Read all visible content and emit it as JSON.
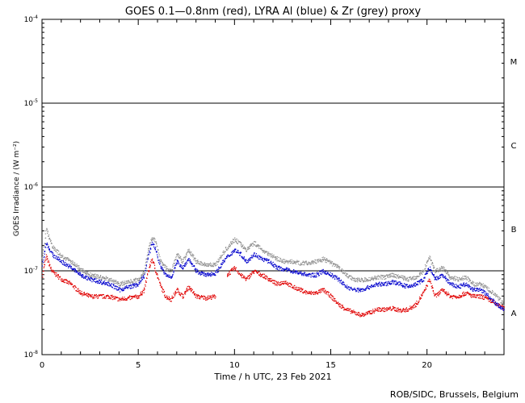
{
  "chart_data": {
    "type": "scatter",
    "title": "GOES 0.1—0.8nm (red), LYRA Al (blue) & Zr (grey) proxy",
    "xlabel": "Time / h UTC, 23 Feb 2021",
    "ylabel": "GOES Irradiance / (W m⁻²)",
    "xlim": [
      0,
      24
    ],
    "ylim": [
      1e-08,
      0.0001
    ],
    "yscale": "log",
    "x_ticks": [
      0,
      5,
      10,
      15,
      20
    ],
    "x_tick_labels": [
      "0",
      "5",
      "10",
      "15",
      "20"
    ],
    "y_ticks": [
      1e-08,
      1e-07,
      1e-06,
      1e-05,
      0.0001
    ],
    "y_tick_labels": [
      {
        "base": "10",
        "exp": "-8"
      },
      {
        "base": "10",
        "exp": "-7"
      },
      {
        "base": "10",
        "exp": "-6"
      },
      {
        "base": "10",
        "exp": "-5"
      },
      {
        "base": "10",
        "exp": "-4"
      }
    ],
    "flare_class_lines": [
      1e-07,
      1e-06,
      1e-05
    ],
    "flare_classes": [
      {
        "label": "M",
        "y": 3.16e-05
      },
      {
        "label": "C",
        "y": 3.16e-06
      },
      {
        "label": "B",
        "y": 3.16e-07
      },
      {
        "label": "A",
        "y": 3.16e-08
      }
    ],
    "colors": {
      "goes": "#e00000",
      "al": "#0000cc",
      "zr": "#909090"
    },
    "series": [
      {
        "color_key": "goes",
        "x": [
          0.0,
          0.2,
          0.5,
          1.0,
          1.5,
          2.0,
          2.5,
          3.0,
          3.5,
          4.0,
          4.5,
          5.0,
          5.3,
          5.5,
          5.7,
          5.9,
          6.1,
          6.4,
          6.7,
          7.0,
          7.3,
          7.6,
          8.0,
          8.5,
          9.0,
          null,
          9.6,
          10.0,
          10.3,
          10.6,
          11.0,
          11.4,
          11.8,
          12.2,
          12.6,
          13.0,
          13.4,
          13.8,
          14.2,
          14.6,
          15.0,
          15.4,
          15.8,
          16.2,
          16.6,
          17.0,
          17.4,
          17.8,
          18.2,
          18.6,
          19.0,
          19.4,
          19.8,
          20.1,
          20.4,
          20.8,
          21.2,
          21.6,
          22.0,
          22.4,
          22.8,
          23.2,
          23.6,
          24.0
        ],
        "y": [
          9e-08,
          1.5e-07,
          1e-07,
          8e-08,
          7e-08,
          5.5e-08,
          5e-08,
          5e-08,
          5e-08,
          4.6e-08,
          4.8e-08,
          5e-08,
          6e-08,
          1e-07,
          1.4e-07,
          1e-07,
          7e-08,
          5e-08,
          4.6e-08,
          6e-08,
          5e-08,
          6.5e-08,
          5e-08,
          4.8e-08,
          5e-08,
          null,
          9e-08,
          1.1e-07,
          9e-08,
          8e-08,
          1e-07,
          9e-08,
          8e-08,
          7e-08,
          7.5e-08,
          6.5e-08,
          6e-08,
          5.5e-08,
          5.5e-08,
          6e-08,
          5e-08,
          4e-08,
          3.5e-08,
          3.2e-08,
          3e-08,
          3.2e-08,
          3.5e-08,
          3.5e-08,
          3.6e-08,
          3.4e-08,
          3.5e-08,
          4e-08,
          5.5e-08,
          8e-08,
          5e-08,
          6e-08,
          5e-08,
          5e-08,
          5.5e-08,
          5e-08,
          5e-08,
          4.6e-08,
          4e-08,
          3.6e-08
        ]
      },
      {
        "color_key": "al",
        "x": [
          0.0,
          0.2,
          0.5,
          1.0,
          1.5,
          2.0,
          2.5,
          3.0,
          3.5,
          4.0,
          4.5,
          5.0,
          5.3,
          5.5,
          5.7,
          5.9,
          6.1,
          6.4,
          6.7,
          7.0,
          7.3,
          7.6,
          8.0,
          8.5,
          9.0,
          9.5,
          10.0,
          10.3,
          10.6,
          11.0,
          11.4,
          11.8,
          12.2,
          12.6,
          13.0,
          13.4,
          13.8,
          14.2,
          14.6,
          15.0,
          15.4,
          15.8,
          16.2,
          16.6,
          17.0,
          17.4,
          17.8,
          18.2,
          18.6,
          19.0,
          19.4,
          19.8,
          20.1,
          20.4,
          20.8,
          21.2,
          21.6,
          22.0,
          22.4,
          22.8,
          23.2,
          23.6,
          24.0
        ],
        "y": [
          1.2e-07,
          2.2e-07,
          1.6e-07,
          1.3e-07,
          1.1e-07,
          9e-08,
          8e-08,
          7.5e-08,
          7e-08,
          6e-08,
          6.5e-08,
          7e-08,
          9e-08,
          1.5e-07,
          2.2e-07,
          1.8e-07,
          1.2e-07,
          9e-08,
          8.5e-08,
          1.3e-07,
          1.1e-07,
          1.4e-07,
          1e-07,
          9e-08,
          9.5e-08,
          1.4e-07,
          1.8e-07,
          1.6e-07,
          1.3e-07,
          1.6e-07,
          1.4e-07,
          1.3e-07,
          1.1e-07,
          1.05e-07,
          1e-07,
          9.5e-08,
          9e-08,
          9e-08,
          1e-07,
          9e-08,
          8e-08,
          6.5e-08,
          6e-08,
          6e-08,
          6.5e-08,
          7e-08,
          7e-08,
          7.5e-08,
          7e-08,
          6.5e-08,
          7e-08,
          8e-08,
          1.1e-07,
          8e-08,
          9e-08,
          7e-08,
          6.5e-08,
          7e-08,
          6e-08,
          6e-08,
          5e-08,
          4e-08,
          3.5e-08
        ]
      },
      {
        "color_key": "zr",
        "x": [
          0.0,
          0.2,
          0.5,
          1.0,
          1.5,
          2.0,
          2.5,
          3.0,
          3.5,
          4.0,
          4.5,
          5.0,
          5.3,
          5.5,
          5.7,
          5.9,
          6.1,
          6.4,
          6.7,
          7.0,
          7.3,
          7.6,
          8.0,
          8.5,
          9.0,
          9.5,
          10.0,
          10.3,
          10.6,
          11.0,
          11.4,
          11.8,
          12.2,
          12.6,
          13.0,
          13.4,
          13.8,
          14.2,
          14.6,
          15.0,
          15.4,
          15.8,
          16.2,
          16.6,
          17.0,
          17.4,
          17.8,
          18.2,
          18.6,
          19.0,
          19.4,
          19.8,
          20.1,
          20.4,
          20.8,
          21.2,
          21.6,
          22.0,
          22.4,
          22.8,
          23.2,
          23.6,
          24.0
        ],
        "y": [
          1.4e-07,
          3.2e-07,
          2e-07,
          1.5e-07,
          1.3e-07,
          1.05e-07,
          9e-08,
          8.5e-08,
          8e-08,
          7e-08,
          7.5e-08,
          8e-08,
          1e-07,
          1.8e-07,
          2.6e-07,
          2.2e-07,
          1.4e-07,
          1.1e-07,
          1e-07,
          1.6e-07,
          1.3e-07,
          1.8e-07,
          1.3e-07,
          1.2e-07,
          1.2e-07,
          1.8e-07,
          2.4e-07,
          2.1e-07,
          1.8e-07,
          2.2e-07,
          1.8e-07,
          1.6e-07,
          1.4e-07,
          1.3e-07,
          1.3e-07,
          1.25e-07,
          1.25e-07,
          1.3e-07,
          1.4e-07,
          1.25e-07,
          1.1e-07,
          9e-08,
          8e-08,
          7.8e-08,
          8e-08,
          8.5e-08,
          8.5e-08,
          9e-08,
          8.5e-08,
          8e-08,
          8.5e-08,
          1e-07,
          1.5e-07,
          1e-07,
          1.1e-07,
          8.5e-08,
          8e-08,
          8.5e-08,
          7e-08,
          7e-08,
          6e-08,
          5e-08,
          4e-08
        ]
      }
    ]
  },
  "credit": "ROB/SIDC, Brussels, Belgium"
}
